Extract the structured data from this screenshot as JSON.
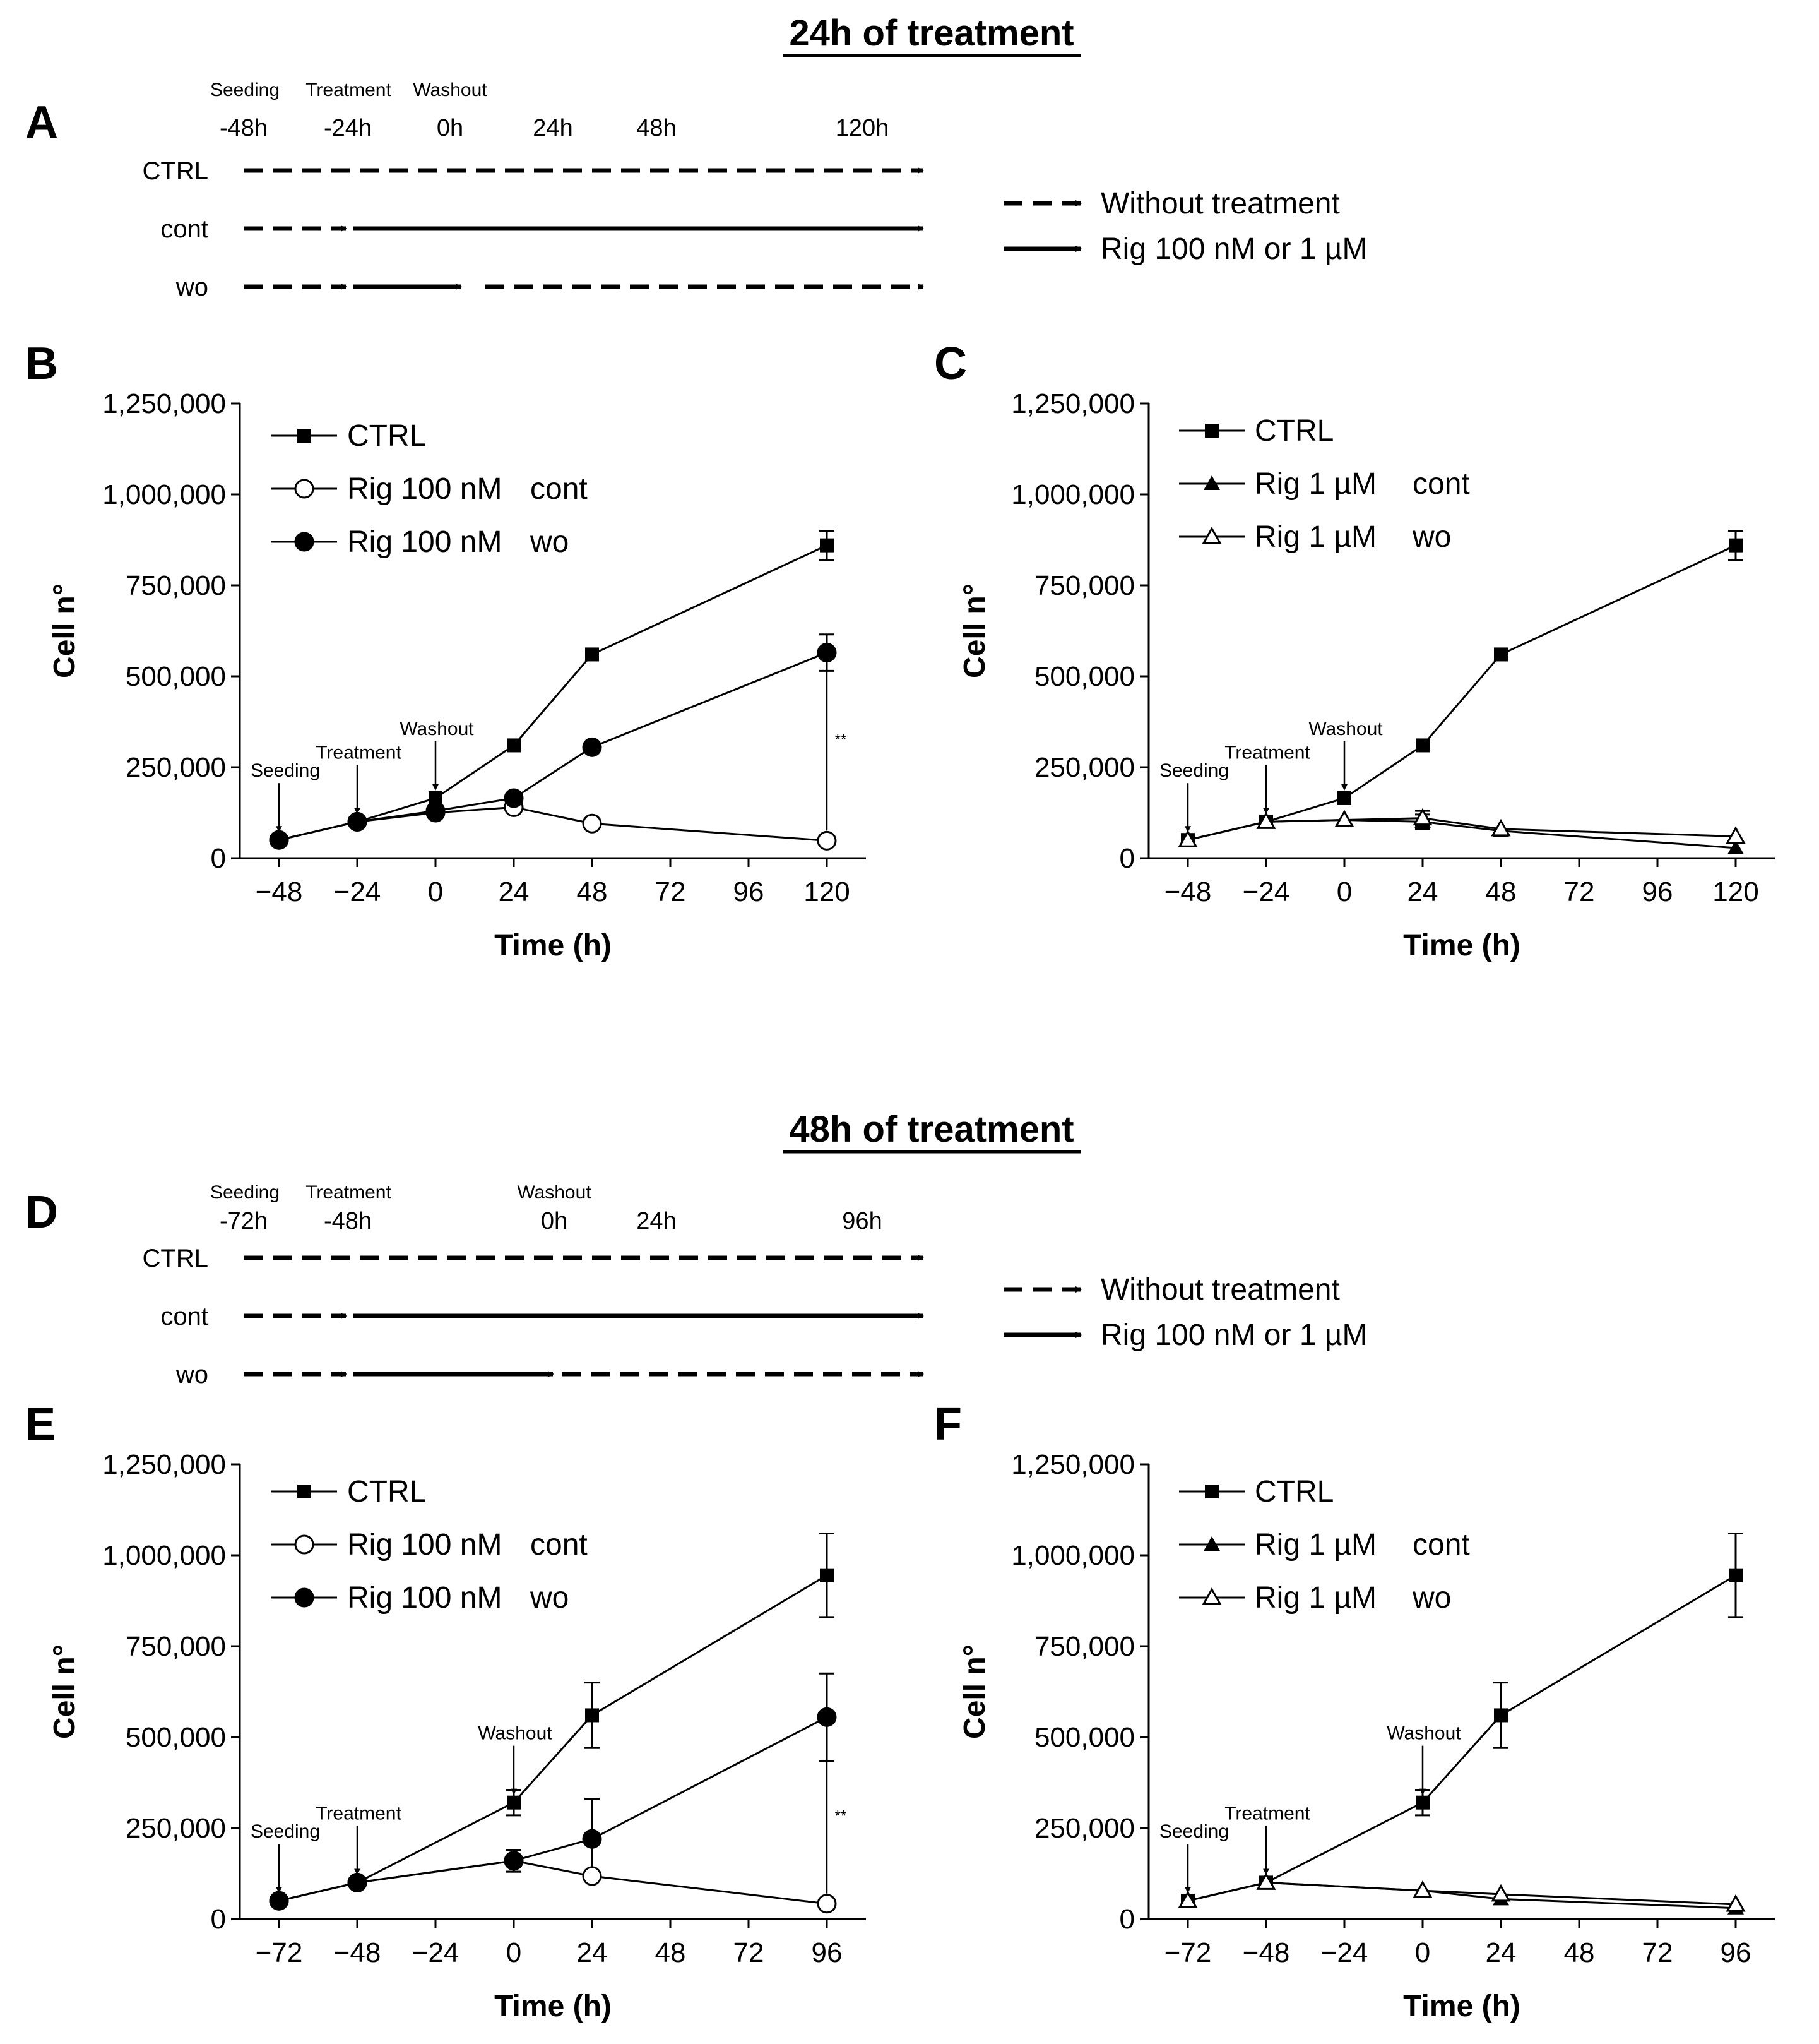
{
  "sections": [
    {
      "title": "24h of treatment",
      "timeline": {
        "letter": "A",
        "events": [
          "Seeding",
          "Treatment",
          "Washout"
        ],
        "times": [
          "-48h",
          "-24h",
          "0h",
          "24h",
          "48h",
          "120h"
        ],
        "rows": [
          "CTRL",
          "cont",
          "wo"
        ]
      }
    },
    {
      "title": "48h of treatment",
      "timeline": {
        "letter": "D",
        "events": [
          "Seeding",
          "Treatment",
          "Washout"
        ],
        "times": [
          "-72h",
          "-48h",
          "0h",
          "24h",
          "96h"
        ],
        "rows": [
          "CTRL",
          "cont",
          "wo"
        ]
      }
    }
  ],
  "key": {
    "dashed_label": "Without treatment",
    "solid_label": "Rig 100 nM or 1 µM"
  },
  "chart_data": [
    {
      "letter": "B",
      "type": "line",
      "xlabel": "Time (h)",
      "ylabel": "Cell n°",
      "xlim": [
        -60,
        132
      ],
      "ylim": [
        0,
        1250000
      ],
      "xticks": [
        -48,
        -24,
        0,
        24,
        48,
        72,
        96,
        120
      ],
      "yticks": [
        0,
        250000,
        500000,
        750000,
        1000000,
        1250000
      ],
      "ytick_labels": [
        "0",
        "250,000",
        "500,000",
        "750,000",
        "1,000,000",
        "1,250,000"
      ],
      "series": [
        {
          "name": "CTRL",
          "suffix": "",
          "marker": "square-filled",
          "x": [
            -48,
            -24,
            0,
            24,
            48,
            120
          ],
          "y": [
            50000,
            100000,
            165000,
            310000,
            560000,
            860000
          ],
          "err": [
            0,
            0,
            0,
            0,
            0,
            40000
          ]
        },
        {
          "name": "Rig 100 nM",
          "suffix": "cont",
          "marker": "circle-open",
          "x": [
            -48,
            -24,
            0,
            24,
            48,
            120
          ],
          "y": [
            50000,
            100000,
            125000,
            140000,
            95000,
            48000
          ],
          "err": [
            0,
            0,
            0,
            0,
            0,
            0
          ]
        },
        {
          "name": "Rig 100 nM",
          "suffix": "wo",
          "marker": "circle-filled",
          "x": [
            -48,
            -24,
            0,
            24,
            48,
            120
          ],
          "y": [
            50000,
            100000,
            130000,
            165000,
            305000,
            565000
          ],
          "err": [
            0,
            0,
            0,
            0,
            0,
            50000
          ]
        }
      ],
      "annotations": [
        {
          "text": "Seeding",
          "x": -48
        },
        {
          "text": "Treatment",
          "x": -24
        },
        {
          "text": "Washout",
          "x": 0
        }
      ],
      "significance": {
        "text": "**",
        "x": 120
      }
    },
    {
      "letter": "C",
      "type": "line",
      "xlabel": "Time (h)",
      "ylabel": "Cell n°",
      "xlim": [
        -60,
        132
      ],
      "ylim": [
        0,
        1250000
      ],
      "xticks": [
        -48,
        -24,
        0,
        24,
        48,
        72,
        96,
        120
      ],
      "yticks": [
        0,
        250000,
        500000,
        750000,
        1000000,
        1250000
      ],
      "ytick_labels": [
        "0",
        "250,000",
        "500,000",
        "750,000",
        "1,000,000",
        "1,250,000"
      ],
      "series": [
        {
          "name": "CTRL",
          "suffix": "",
          "marker": "square-filled",
          "x": [
            -48,
            -24,
            0,
            24,
            48,
            120
          ],
          "y": [
            50000,
            100000,
            165000,
            310000,
            560000,
            860000
          ],
          "err": [
            0,
            0,
            0,
            0,
            0,
            40000
          ]
        },
        {
          "name": "Rig 1 µM",
          "suffix": "cont",
          "marker": "triangle-filled",
          "x": [
            -48,
            -24,
            0,
            24,
            48,
            120
          ],
          "y": [
            50000,
            100000,
            105000,
            100000,
            75000,
            28000
          ],
          "err": [
            0,
            0,
            0,
            20000,
            0,
            0
          ]
        },
        {
          "name": "Rig 1 µM",
          "suffix": "wo",
          "marker": "triangle-open",
          "x": [
            -48,
            -24,
            0,
            24,
            48,
            120
          ],
          "y": [
            50000,
            100000,
            105000,
            110000,
            80000,
            60000
          ],
          "err": [
            0,
            0,
            0,
            20000,
            0,
            0
          ]
        }
      ],
      "annotations": [
        {
          "text": "Seeding",
          "x": -48
        },
        {
          "text": "Treatment",
          "x": -24
        },
        {
          "text": "Washout",
          "x": 0
        }
      ],
      "significance": null
    },
    {
      "letter": "E",
      "type": "line",
      "xlabel": "Time (h)",
      "ylabel": "Cell n°",
      "xlim": [
        -84,
        108
      ],
      "ylim": [
        0,
        1250000
      ],
      "xticks": [
        -72,
        -48,
        -24,
        0,
        24,
        48,
        72,
        96
      ],
      "yticks": [
        0,
        250000,
        500000,
        750000,
        1000000,
        1250000
      ],
      "ytick_labels": [
        "0",
        "250,000",
        "500,000",
        "750,000",
        "1,000,000",
        "1,250,000"
      ],
      "series": [
        {
          "name": "CTRL",
          "suffix": "",
          "marker": "square-filled",
          "x": [
            -72,
            -48,
            0,
            24,
            96
          ],
          "y": [
            50000,
            100000,
            320000,
            560000,
            945000
          ],
          "err": [
            0,
            0,
            35000,
            90000,
            115000
          ]
        },
        {
          "name": "Rig 100 nM",
          "suffix": "cont",
          "marker": "circle-open",
          "x": [
            -72,
            -48,
            0,
            24,
            96
          ],
          "y": [
            50000,
            100000,
            160000,
            118000,
            42000
          ],
          "err": [
            0,
            0,
            30000,
            0,
            0
          ]
        },
        {
          "name": "Rig 100 nM",
          "suffix": "wo",
          "marker": "circle-filled",
          "x": [
            -72,
            -48,
            0,
            24,
            96
          ],
          "y": [
            50000,
            100000,
            160000,
            220000,
            555000
          ],
          "err": [
            0,
            0,
            30000,
            110000,
            120000
          ]
        }
      ],
      "annotations": [
        {
          "text": "Seeding",
          "x": -72
        },
        {
          "text": "Treatment",
          "x": -48
        },
        {
          "text": "Washout",
          "x": 0
        }
      ],
      "significance": {
        "text": "**",
        "x": 96
      }
    },
    {
      "letter": "F",
      "type": "line",
      "xlabel": "Time (h)",
      "ylabel": "Cell n°",
      "xlim": [
        -84,
        108
      ],
      "ylim": [
        0,
        1250000
      ],
      "xticks": [
        -72,
        -48,
        -24,
        0,
        24,
        48,
        72,
        96
      ],
      "yticks": [
        0,
        250000,
        500000,
        750000,
        1000000,
        1250000
      ],
      "ytick_labels": [
        "0",
        "250,000",
        "500,000",
        "750,000",
        "1,000,000",
        "1,250,000"
      ],
      "series": [
        {
          "name": "CTRL",
          "suffix": "",
          "marker": "square-filled",
          "x": [
            -72,
            -48,
            0,
            24,
            96
          ],
          "y": [
            50000,
            100000,
            320000,
            560000,
            945000
          ],
          "err": [
            0,
            0,
            35000,
            90000,
            115000
          ]
        },
        {
          "name": "Rig 1 µM",
          "suffix": "cont",
          "marker": "triangle-filled",
          "x": [
            -72,
            -48,
            0,
            24,
            96
          ],
          "y": [
            50000,
            100000,
            78000,
            55000,
            30000
          ],
          "err": [
            0,
            0,
            0,
            0,
            0
          ]
        },
        {
          "name": "Rig 1 µM",
          "suffix": "wo",
          "marker": "triangle-open",
          "x": [
            -72,
            -48,
            0,
            24,
            96
          ],
          "y": [
            50000,
            100000,
            78000,
            68000,
            40000
          ],
          "err": [
            0,
            0,
            0,
            0,
            0
          ]
        }
      ],
      "annotations": [
        {
          "text": "Seeding",
          "x": -72
        },
        {
          "text": "Treatment",
          "x": -48
        },
        {
          "text": "Washout",
          "x": 0
        }
      ],
      "significance": null
    }
  ]
}
